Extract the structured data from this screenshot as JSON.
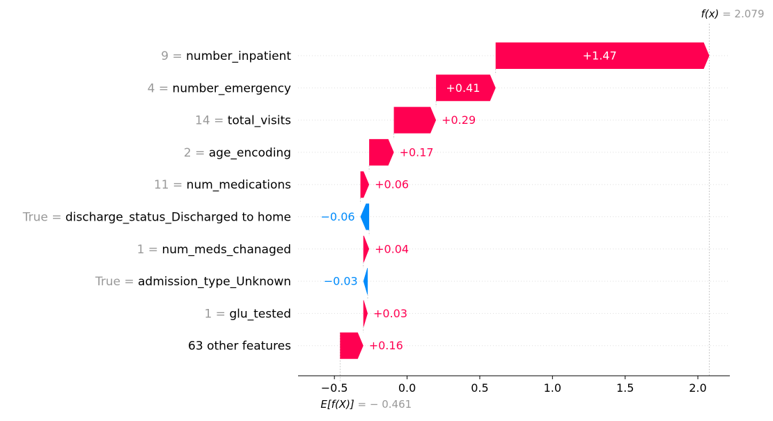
{
  "chart_data": {
    "type": "waterfall",
    "base_value": -0.461,
    "final_value": 2.079,
    "fx_label": "f(x)",
    "fx_value_text": "= 2.079",
    "efx_label": "E[f(X)]",
    "efx_value_text": "= − 0.461",
    "xlim": [
      -0.75,
      2.22
    ],
    "xticks": [
      -0.5,
      0.0,
      0.5,
      1.0,
      1.5,
      2.0
    ],
    "xtick_labels": [
      "−0.5",
      "0.0",
      "0.5",
      "1.0",
      "1.5",
      "2.0"
    ],
    "features": [
      {
        "value_text": "9 =",
        "name": "number_inpatient",
        "contribution": 1.47,
        "label": "+1.47"
      },
      {
        "value_text": "4 =",
        "name": "number_emergency",
        "contribution": 0.41,
        "label": "+0.41"
      },
      {
        "value_text": "14 =",
        "name": "total_visits",
        "contribution": 0.29,
        "label": "+0.29"
      },
      {
        "value_text": "2 =",
        "name": "age_encoding",
        "contribution": 0.17,
        "label": "+0.17"
      },
      {
        "value_text": "11 =",
        "name": "num_medications",
        "contribution": 0.06,
        "label": "+0.06"
      },
      {
        "value_text": "True =",
        "name": "discharge_status_Discharged to home",
        "contribution": -0.06,
        "label": "−0.06"
      },
      {
        "value_text": "1 =",
        "name": "num_meds_chanaged",
        "contribution": 0.04,
        "label": "+0.04"
      },
      {
        "value_text": "True =",
        "name": "admission_type_Unknown",
        "contribution": -0.03,
        "label": "−0.03"
      },
      {
        "value_text": "1 =",
        "name": "glu_tested",
        "contribution": 0.03,
        "label": "+0.03"
      },
      {
        "value_text": "",
        "name": "63 other features",
        "contribution": 0.16,
        "label": "+0.16"
      }
    ],
    "colors": {
      "positive": "#ff0051",
      "negative": "#008bfb",
      "muted": "#999999",
      "text": "#000000",
      "grid": "#dddddd"
    }
  }
}
